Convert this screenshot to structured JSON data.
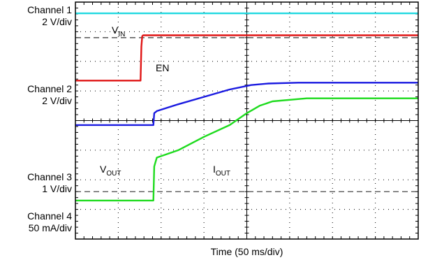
{
  "chart_data": {
    "type": "line",
    "xlabel": "Time (50 ms/div)",
    "x_divisions": 8,
    "y_divisions": 8,
    "x_unit_per_div_ms": 50,
    "x_range_ms": [
      0,
      400
    ],
    "y_range_div": [
      0,
      8
    ],
    "grid": "dotted",
    "channel_labels": [
      {
        "id": "ch1",
        "name": "Channel 1",
        "scale": "2 V/div"
      },
      {
        "id": "ch2",
        "name": "Channel 2",
        "scale": "2 V/div"
      },
      {
        "id": "ch3",
        "name": "Channel 3",
        "scale": "1 V/div"
      },
      {
        "id": "ch4",
        "name": "Channel 4",
        "scale": "50 mA/div"
      }
    ],
    "reference_levels_div": [
      6.8,
      1.6
    ],
    "series": [
      {
        "name": "V",
        "sub": "IN",
        "color": "#1fd9e0",
        "points": [
          [
            0,
            7.62
          ],
          [
            400,
            7.62
          ]
        ]
      },
      {
        "name": "EN",
        "sub": "",
        "color": "#e01515",
        "points": [
          [
            0,
            5.35
          ],
          [
            76,
            5.35
          ],
          [
            77,
            6.5
          ],
          [
            78,
            6.85
          ],
          [
            79,
            6.88
          ],
          [
            400,
            6.88
          ]
        ]
      },
      {
        "name": "V",
        "sub": "OUT",
        "color": "#1a1ae0",
        "points": [
          [
            0,
            3.85
          ],
          [
            91,
            3.85
          ],
          [
            92,
            4.25
          ],
          [
            95,
            4.32
          ],
          [
            120,
            4.55
          ],
          [
            150,
            4.8
          ],
          [
            180,
            5.05
          ],
          [
            205,
            5.2
          ],
          [
            225,
            5.25
          ],
          [
            260,
            5.28
          ],
          [
            300,
            5.28
          ],
          [
            400,
            5.28
          ]
        ]
      },
      {
        "name": "I",
        "sub": "OUT",
        "color": "#1edb1e",
        "points": [
          [
            0,
            1.3
          ],
          [
            91,
            1.3
          ],
          [
            92,
            2.45
          ],
          [
            95,
            2.75
          ],
          [
            120,
            3.0
          ],
          [
            150,
            3.45
          ],
          [
            180,
            3.85
          ],
          [
            200,
            4.25
          ],
          [
            215,
            4.5
          ],
          [
            230,
            4.65
          ],
          [
            270,
            4.75
          ],
          [
            330,
            4.75
          ],
          [
            400,
            4.75
          ]
        ]
      }
    ]
  }
}
